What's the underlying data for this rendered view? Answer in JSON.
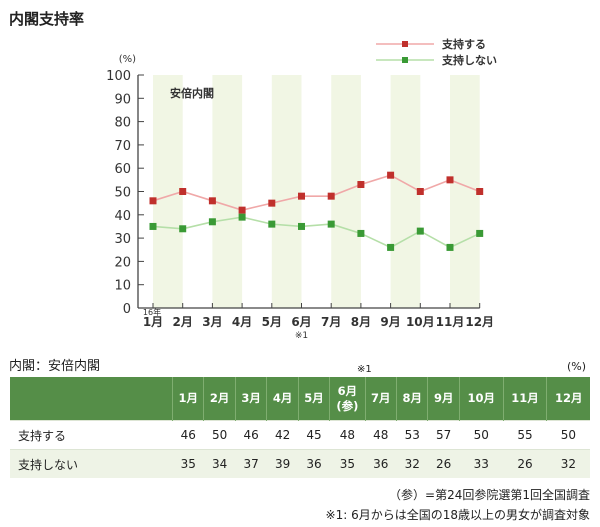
{
  "title": "内閣支持率",
  "chart_data": {
    "type": "line",
    "title": "",
    "annotation": "安倍内閣",
    "ylabel": "(%)",
    "ylim": [
      0,
      100
    ],
    "yticks": [
      0,
      10,
      20,
      30,
      40,
      50,
      60,
      70,
      80,
      90,
      100
    ],
    "year_label": "16年",
    "categories": [
      "1月",
      "2月",
      "3月",
      "4月",
      "5月",
      "6月",
      "7月",
      "8月",
      "9月",
      "10月",
      "11月",
      "12月"
    ],
    "x_note": "※1",
    "series": [
      {
        "name": "支持する",
        "color": "#c0302c",
        "line_color": "#f0a8a8",
        "values": [
          46,
          50,
          46,
          42,
          45,
          48,
          48,
          53,
          57,
          50,
          55,
          50
        ]
      },
      {
        "name": "支持しない",
        "color": "#3a9a35",
        "line_color": "#b5dfa8",
        "values": [
          35,
          34,
          37,
          39,
          36,
          35,
          36,
          32,
          26,
          33,
          26,
          32
        ]
      }
    ],
    "legend": "top-right",
    "band_color": "#f1f6e4"
  },
  "table": {
    "caption": "内閣：安倍内閣",
    "unit": "(%)",
    "note_mark": "※1",
    "headers": [
      "1月",
      "2月",
      "3月",
      "4月",
      "5月",
      "6月",
      "7月",
      "8月",
      "9月",
      "10月",
      "11月",
      "12月"
    ],
    "header_sub": "(参)",
    "rows": [
      {
        "label": "支持する",
        "values": [
          46,
          50,
          46,
          42,
          45,
          48,
          48,
          53,
          57,
          50,
          55,
          50
        ]
      },
      {
        "label": "支持しない",
        "values": [
          35,
          34,
          37,
          39,
          36,
          35,
          36,
          32,
          26,
          33,
          26,
          32
        ]
      }
    ]
  },
  "footnotes": [
    "（参）=第24回参院選第1回全国調査",
    "※1: 6月からは全国の18歳以上の男女が調査対象"
  ]
}
